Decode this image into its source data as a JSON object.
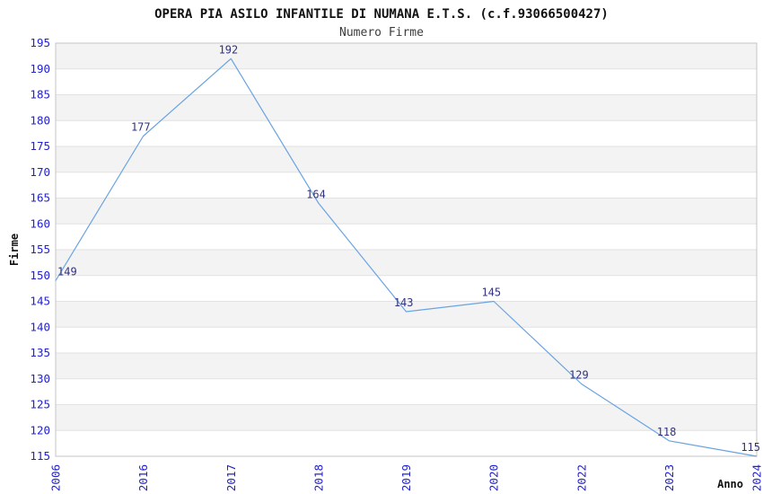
{
  "chart_data": {
    "type": "line",
    "title": "OPERA PIA ASILO INFANTILE DI NUMANA E.T.S. (c.f.93066500427)",
    "subtitle": "Numero Firme",
    "xlabel": "Anno",
    "ylabel": "Firme",
    "categories": [
      "2006",
      "2016",
      "2017",
      "2018",
      "2019",
      "2020",
      "2022",
      "2023",
      "2024"
    ],
    "series": [
      {
        "name": "Numero Firme",
        "values": [
          149,
          177,
          192,
          164,
          143,
          145,
          129,
          118,
          115
        ]
      }
    ],
    "ylim": [
      115,
      195
    ],
    "ytick_step": 5,
    "grid": "horizontal, alternating bands",
    "legend": "none",
    "colors": {
      "line": "#69a3e3",
      "tick_label": "#2121cf",
      "data_label": "#32327e",
      "band_gray": "#f3f3f3",
      "gridline": "#e2e2e2",
      "plot_border": "#c4c4c4",
      "title": "#111111",
      "subtitle": "#3c3c3c"
    }
  }
}
